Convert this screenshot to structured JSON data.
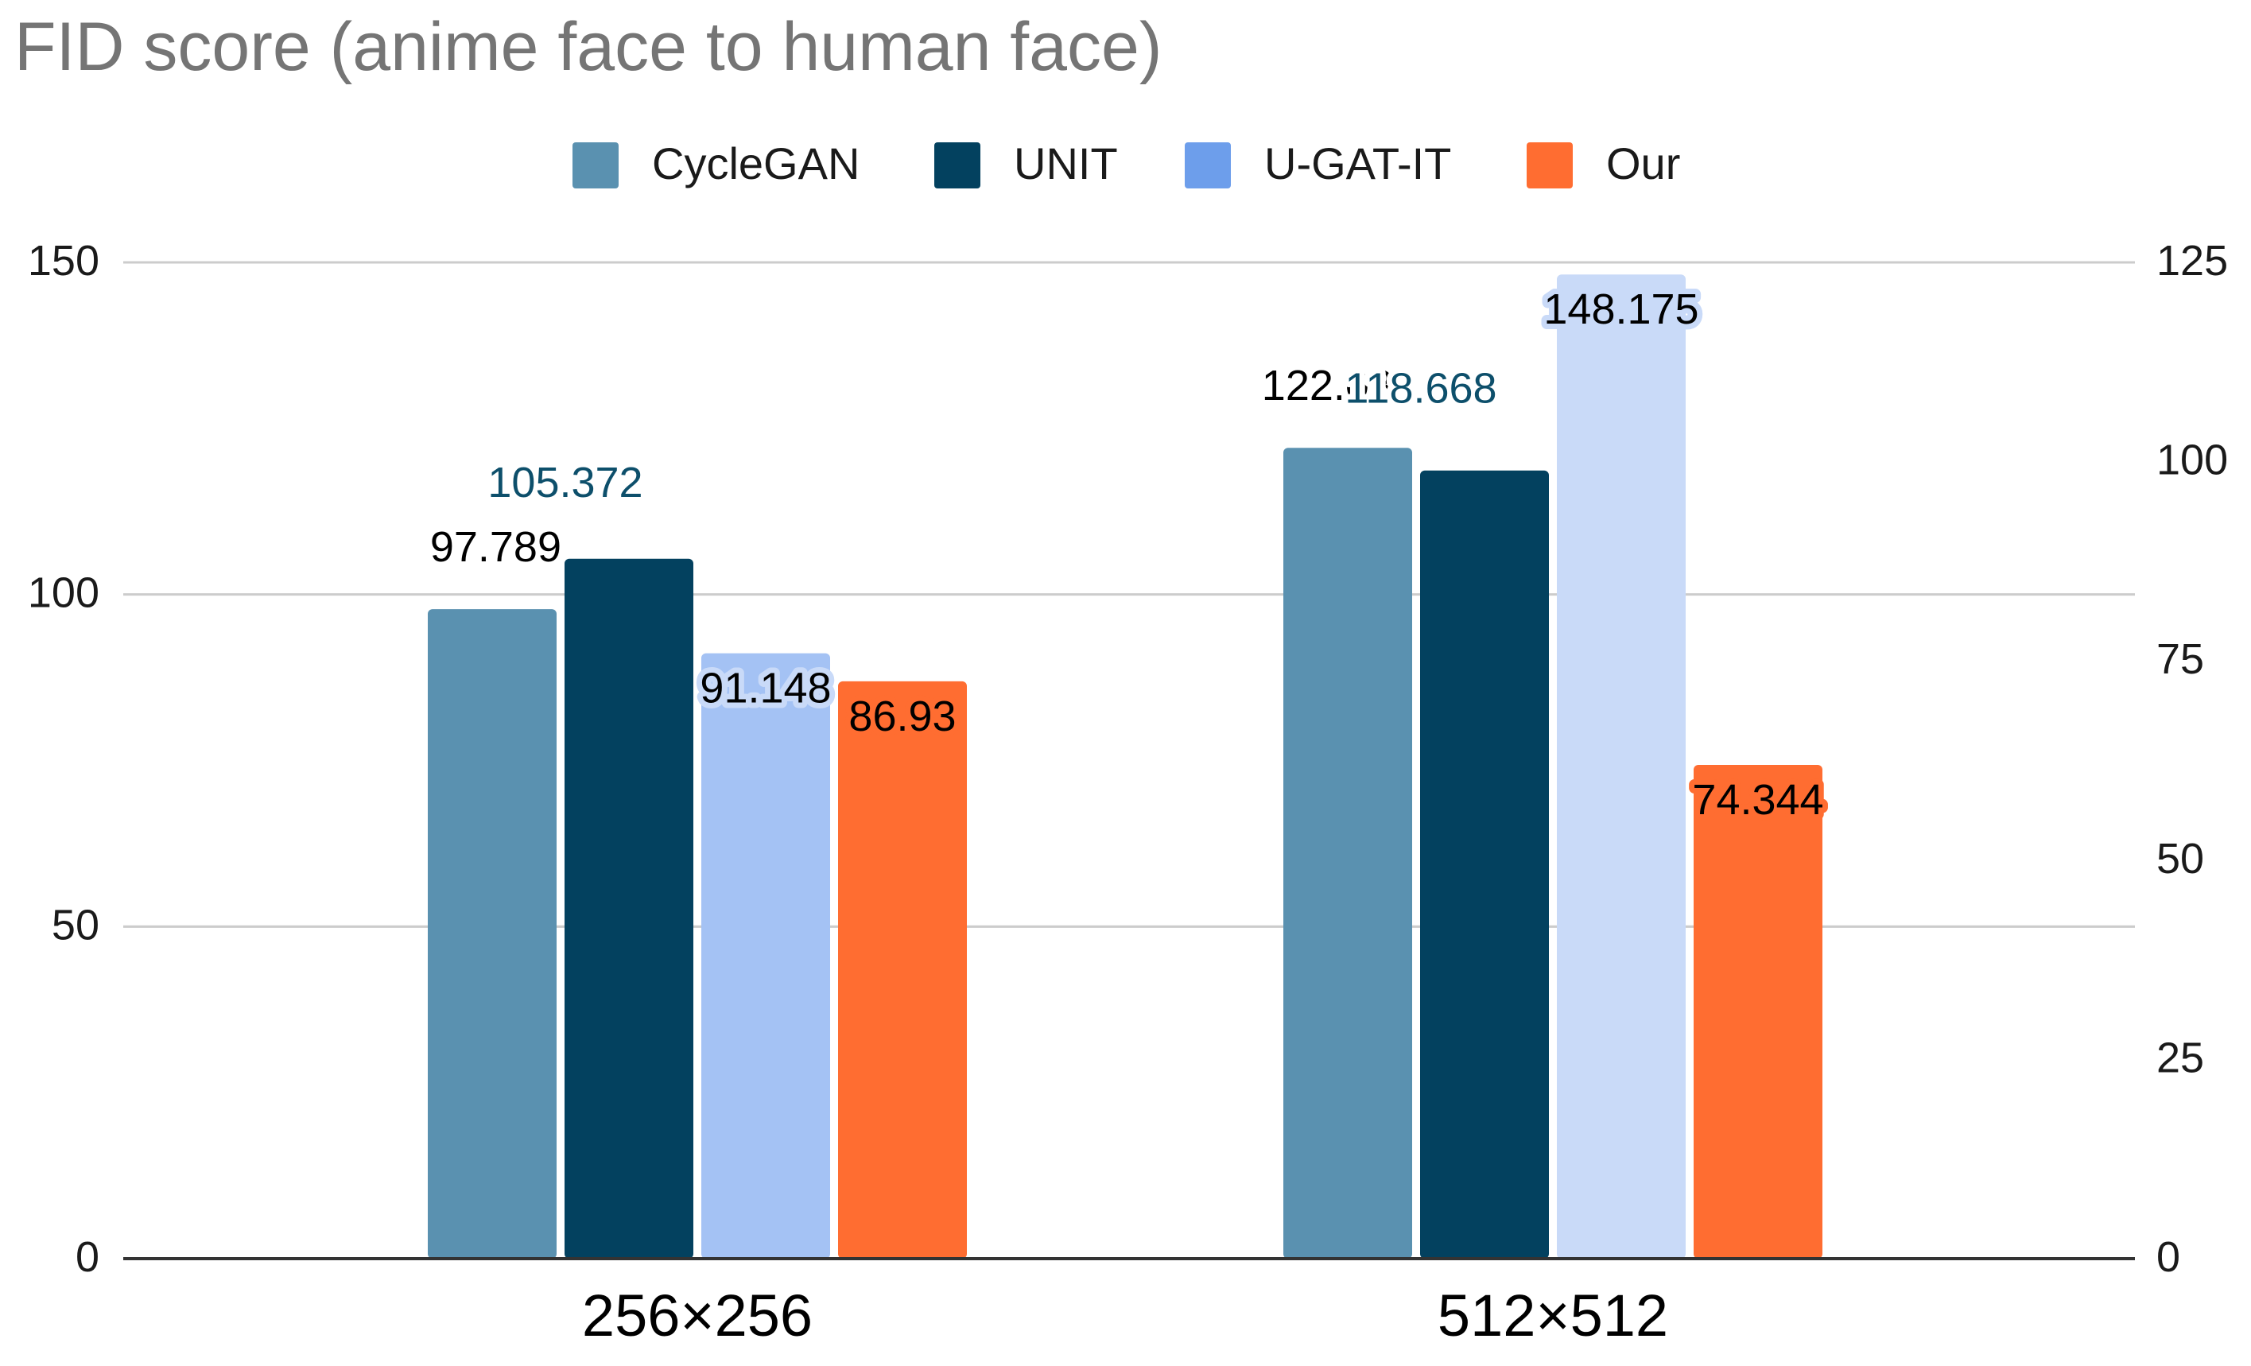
{
  "chart_data": {
    "type": "bar",
    "title": "FID score (anime face to human face)",
    "categories": [
      "256×256",
      "512×512"
    ],
    "series": [
      {
        "name": "CycleGAN",
        "color": "#5a91b0",
        "values": [
          97.789,
          122.083
        ],
        "label_color": "#000000",
        "label_halo": "#ffffff",
        "label_pos": "top-left"
      },
      {
        "name": "UNIT",
        "color": "#03415f",
        "values": [
          105.372,
          118.668
        ],
        "label_color": "#0d4f6b",
        "label_halo": "#ffffff",
        "label_pos": "top",
        "axis": "right"
      },
      {
        "name": "U-GAT-IT",
        "color": "#a4c2f4",
        "color_alt": "#c9daf8",
        "legend_color": "#6d9eeb",
        "values": [
          91.148,
          148.175
        ],
        "label_color": "#000000",
        "label_halo": "#c9daf8",
        "label_pos": "inside-top"
      },
      {
        "name": "Our",
        "color": "#ff6d31",
        "values": [
          86.93,
          74.344
        ],
        "label_color": "#000000",
        "label_halo": "#ff6d31",
        "label_pos": "inside-top"
      }
    ],
    "left_axis": {
      "ylim": [
        0,
        150
      ],
      "ticks": [
        "0",
        "50",
        "100",
        "150"
      ]
    },
    "right_axis": {
      "ylim": [
        0,
        125
      ],
      "ticks": [
        "0",
        "25",
        "50",
        "75",
        "100",
        "125"
      ]
    },
    "xlabel": "",
    "ylabel": "",
    "grid": true,
    "legend_position": "top"
  }
}
